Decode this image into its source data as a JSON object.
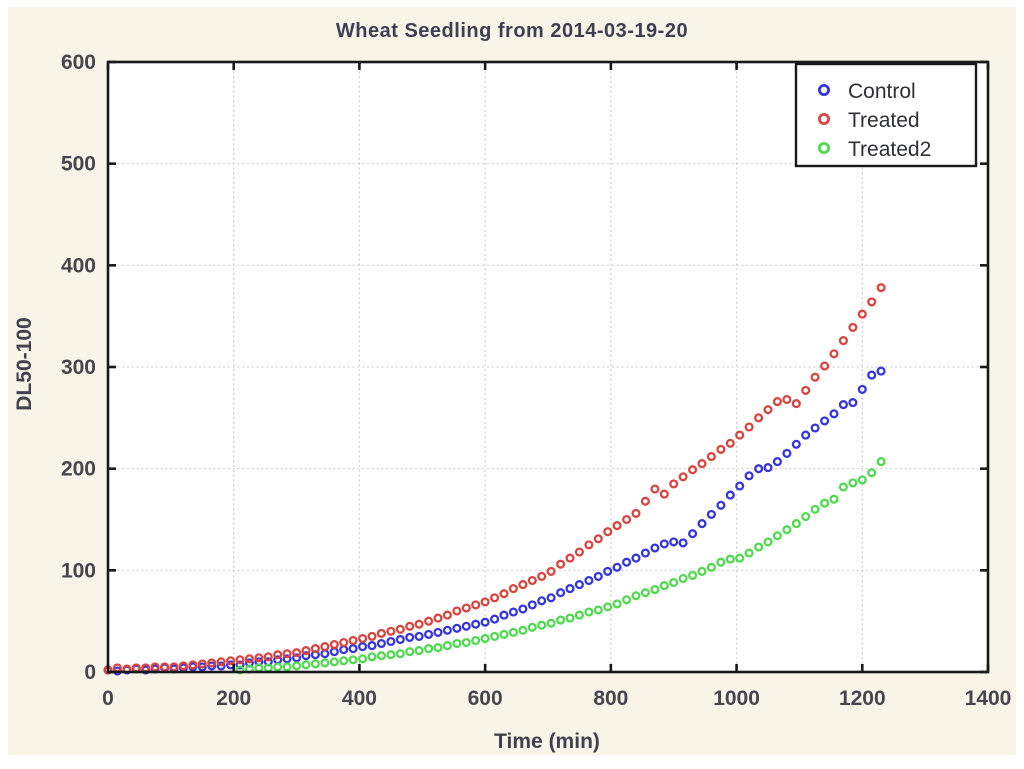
{
  "chart_data": {
    "type": "scatter",
    "title": "Wheat Seedling from 2014-03-19-20",
    "xlabel": "Time (min)",
    "ylabel": "DL50-100",
    "xlim": [
      0,
      1400
    ],
    "ylim": [
      0,
      600
    ],
    "xticks": [
      0,
      200,
      400,
      600,
      800,
      1000,
      1200,
      1400
    ],
    "yticks": [
      0,
      100,
      200,
      300,
      400,
      500,
      600
    ],
    "grid": true,
    "grid_style": "dotted",
    "legend_position": "top-right",
    "marker": "open-circle",
    "x": [
      0,
      15,
      30,
      45,
      60,
      75,
      90,
      105,
      120,
      135,
      150,
      165,
      180,
      195,
      210,
      225,
      240,
      255,
      270,
      285,
      300,
      315,
      330,
      345,
      360,
      375,
      390,
      405,
      420,
      435,
      450,
      465,
      480,
      495,
      510,
      525,
      540,
      555,
      570,
      585,
      600,
      615,
      630,
      645,
      660,
      675,
      690,
      705,
      720,
      735,
      750,
      765,
      780,
      795,
      810,
      825,
      840,
      855,
      870,
      885,
      900,
      915,
      930,
      945,
      960,
      975,
      990,
      1005,
      1020,
      1035,
      1050,
      1065,
      1080,
      1095,
      1110,
      1125,
      1140,
      1155,
      1170,
      1185,
      1200,
      1215,
      1230
    ],
    "series": [
      {
        "name": "Control",
        "color": "#3535dd",
        "values": [
          2,
          1,
          2,
          3,
          2,
          3,
          4,
          3,
          4,
          5,
          5,
          6,
          6,
          7,
          7,
          9,
          10,
          10,
          12,
          13,
          14,
          16,
          17,
          18,
          20,
          22,
          23,
          25,
          26,
          28,
          30,
          32,
          34,
          35,
          37,
          39,
          41,
          43,
          45,
          47,
          49,
          52,
          56,
          59,
          62,
          66,
          70,
          73,
          78,
          82,
          86,
          90,
          94,
          99,
          103,
          108,
          112,
          117,
          122,
          126,
          128,
          127,
          136,
          146,
          155,
          164,
          174,
          183,
          193,
          200,
          201,
          207,
          215,
          224,
          233,
          240,
          247,
          254,
          263,
          265,
          278,
          292,
          296
        ]
      },
      {
        "name": "Treated",
        "color": "#d9443e",
        "values": [
          2,
          4,
          3,
          4,
          4,
          5,
          5,
          5,
          6,
          7,
          8,
          9,
          10,
          11,
          12,
          13,
          14,
          15,
          17,
          18,
          19,
          21,
          23,
          25,
          27,
          29,
          31,
          33,
          35,
          38,
          40,
          42,
          45,
          47,
          50,
          53,
          56,
          60,
          63,
          66,
          69,
          73,
          77,
          82,
          86,
          90,
          94,
          99,
          106,
          112,
          118,
          125,
          131,
          138,
          144,
          150,
          156,
          168,
          180,
          175,
          185,
          192,
          199,
          205,
          212,
          219,
          225,
          233,
          241,
          250,
          258,
          266,
          268,
          264,
          277,
          290,
          301,
          313,
          326,
          339,
          352,
          364,
          378
        ]
      },
      {
        "name": "Treated2",
        "color": "#4fd94f",
        "values": [
          null,
          null,
          null,
          null,
          null,
          null,
          null,
          null,
          null,
          null,
          null,
          null,
          null,
          null,
          2,
          3,
          4,
          4,
          5,
          5,
          6,
          7,
          8,
          9,
          10,
          11,
          12,
          13,
          15,
          16,
          17,
          18,
          20,
          21,
          23,
          24,
          26,
          28,
          29,
          31,
          33,
          35,
          37,
          39,
          41,
          44,
          46,
          48,
          51,
          53,
          56,
          59,
          61,
          64,
          67,
          71,
          75,
          78,
          81,
          85,
          88,
          92,
          95,
          99,
          103,
          108,
          111,
          112,
          117,
          123,
          128,
          134,
          140,
          146,
          153,
          160,
          166,
          170,
          182,
          186,
          189,
          196,
          207
        ]
      }
    ],
    "colors": {
      "background": "#f8f4e7",
      "plot_background": "#ffffff",
      "frame": "#19191c",
      "gridline": "#c6c6c6",
      "text": "#45464f"
    }
  }
}
